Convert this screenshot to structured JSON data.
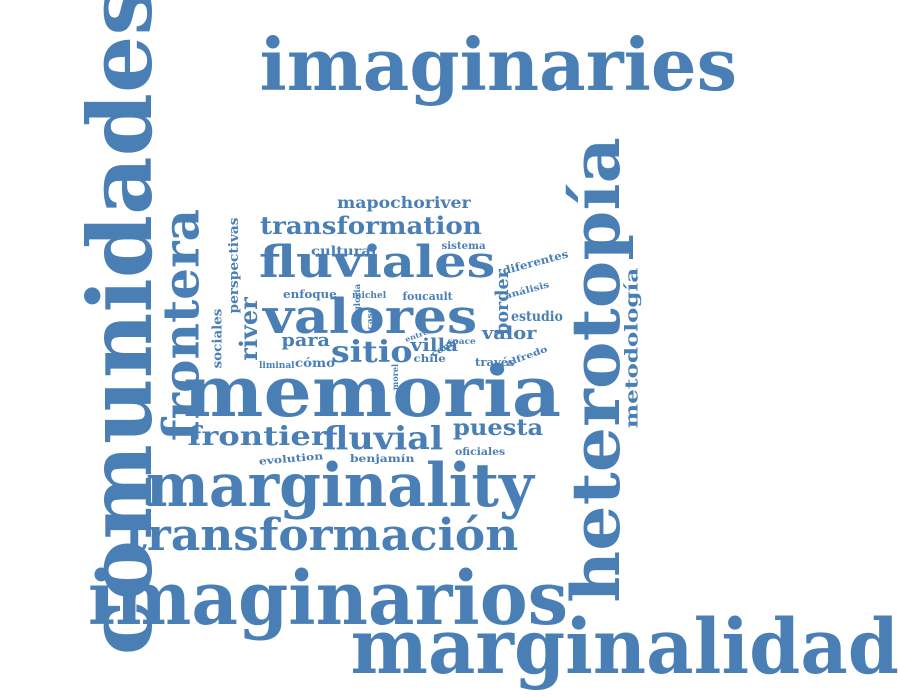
{
  "word_cloud": {
    "color": "#4a7fb5",
    "background": "#ffffff",
    "words": [
      {
        "text": "imaginaries",
        "orientation": "horizontal"
      },
      {
        "text": "comunidades",
        "orientation": "vertical"
      },
      {
        "text": "heterotopía",
        "orientation": "vertical"
      },
      {
        "text": "marginalidad",
        "orientation": "horizontal"
      },
      {
        "text": "imaginarios",
        "orientation": "horizontal"
      },
      {
        "text": "memoria",
        "orientation": "horizontal"
      },
      {
        "text": "marginality",
        "orientation": "horizontal"
      },
      {
        "text": "transformación",
        "orientation": "horizontal"
      },
      {
        "text": "frontera",
        "orientation": "vertical"
      },
      {
        "text": "valores",
        "orientation": "horizontal"
      },
      {
        "text": "fluviales",
        "orientation": "horizontal"
      },
      {
        "text": "transformation",
        "orientation": "horizontal"
      },
      {
        "text": "mapochoriver",
        "orientation": "horizontal"
      },
      {
        "text": "frontier",
        "orientation": "horizontal"
      },
      {
        "text": "fluvial",
        "orientation": "horizontal"
      },
      {
        "text": "puesta",
        "orientation": "horizontal"
      },
      {
        "text": "sitio",
        "orientation": "horizontal"
      },
      {
        "text": "river",
        "orientation": "vertical"
      },
      {
        "text": "para",
        "orientation": "horizontal"
      },
      {
        "text": "metodología",
        "orientation": "vertical"
      },
      {
        "text": "border",
        "orientation": "vertical"
      },
      {
        "text": "valor",
        "orientation": "horizontal"
      },
      {
        "text": "villa",
        "orientation": "horizontal"
      },
      {
        "text": "estudio",
        "orientation": "horizontal"
      },
      {
        "text": "perspectivas",
        "orientation": "vertical"
      },
      {
        "text": "sociales",
        "orientation": "vertical"
      },
      {
        "text": "cultural",
        "orientation": "horizontal"
      },
      {
        "text": "sistema",
        "orientation": "horizontal"
      },
      {
        "text": "diferentes",
        "orientation": "horizontal"
      },
      {
        "text": "enfoque",
        "orientation": "horizontal"
      },
      {
        "text": "michel",
        "orientation": "horizontal"
      },
      {
        "text": "foucault",
        "orientation": "horizontal"
      },
      {
        "text": "análisis",
        "orientation": "horizontal"
      },
      {
        "text": "gloria",
        "orientation": "vertical"
      },
      {
        "text": "caso",
        "orientation": "vertical"
      },
      {
        "text": "entre",
        "orientation": "horizontal"
      },
      {
        "text": "space",
        "orientation": "horizontal"
      },
      {
        "text": "como",
        "orientation": "horizontal"
      },
      {
        "text": "liminal",
        "orientation": "horizontal"
      },
      {
        "text": "cómo",
        "orientation": "horizontal"
      },
      {
        "text": "chile",
        "orientation": "horizontal"
      },
      {
        "text": "través",
        "orientation": "horizontal"
      },
      {
        "text": "alfredo",
        "orientation": "horizontal"
      },
      {
        "text": "morel",
        "orientation": "vertical"
      },
      {
        "text": "partir",
        "orientation": "vertical"
      },
      {
        "text": "oficiales",
        "orientation": "horizontal"
      },
      {
        "text": "evolution",
        "orientation": "horizontal"
      },
      {
        "text": "benjamín",
        "orientation": "horizontal"
      }
    ]
  }
}
